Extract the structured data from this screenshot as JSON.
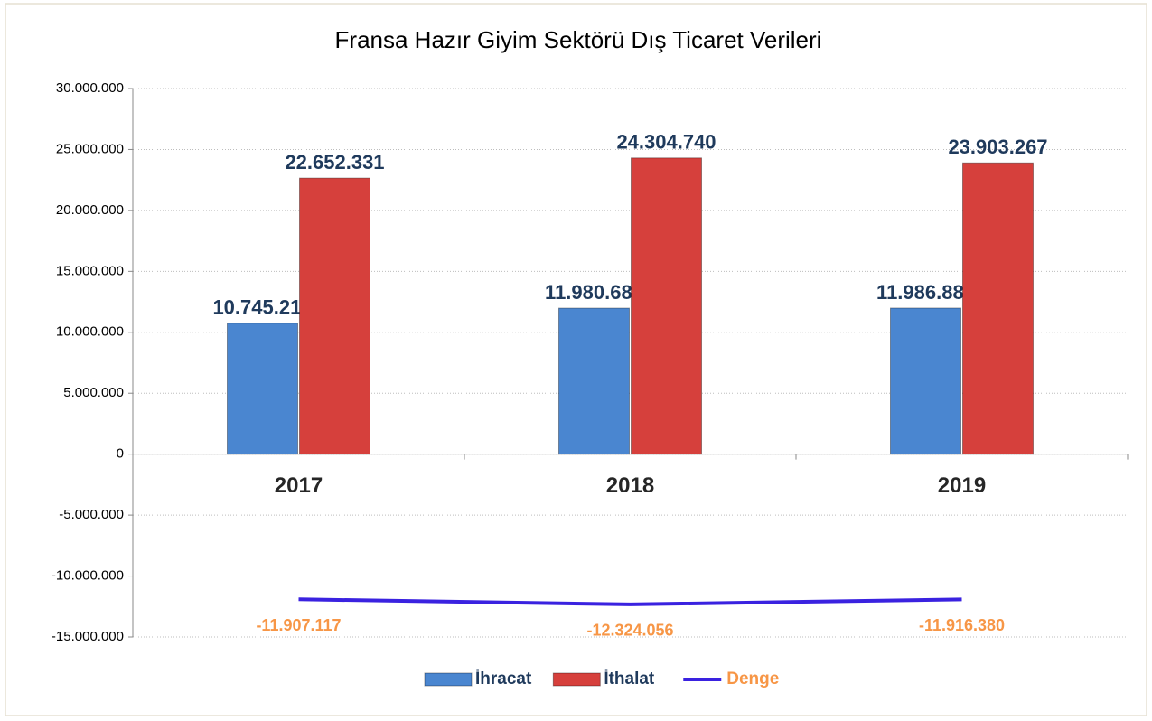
{
  "chart_data": {
    "type": "bar-line",
    "title": "Fransa Hazır Giyim Sektörü Dış Ticaret Verileri",
    "categories": [
      "2017",
      "2018",
      "2019"
    ],
    "series": [
      {
        "name": "İhracat",
        "color": "#4a86d0",
        "type": "bar",
        "values": [
          10745214,
          11980684,
          11986887
        ],
        "value_labels": [
          "10.745.214",
          "11.980.684",
          "11.986.887"
        ]
      },
      {
        "name": "İthalat",
        "color": "#d6403c",
        "type": "bar",
        "values": [
          22652331,
          24304740,
          23903267
        ],
        "value_labels": [
          "22.652.331",
          "24.304.740",
          "23.903.267"
        ]
      },
      {
        "name": "Denge",
        "color": "#3a22e0",
        "type": "line",
        "values": [
          -11907117,
          -12324056,
          -11916380
        ],
        "value_labels": [
          "-11.907.117",
          "-12.324.056",
          "-11.916.380"
        ]
      }
    ],
    "ylim": [
      -15000000,
      30000000
    ],
    "yticks": [
      {
        "value": 30000000,
        "label": "30.000.000"
      },
      {
        "value": 25000000,
        "label": "25.000.000"
      },
      {
        "value": 20000000,
        "label": "20.000.000"
      },
      {
        "value": 15000000,
        "label": "15.000.000"
      },
      {
        "value": 10000000,
        "label": "10.000.000"
      },
      {
        "value": 5000000,
        "label": "5.000.000"
      },
      0,
      {
        "value": -5000000,
        "label": "-5.000.000"
      },
      {
        "value": -10000000,
        "label": "-10.000.000"
      },
      {
        "value": -15000000,
        "label": "-15.000.000"
      }
    ],
    "grid": true,
    "legend": "bottom"
  }
}
